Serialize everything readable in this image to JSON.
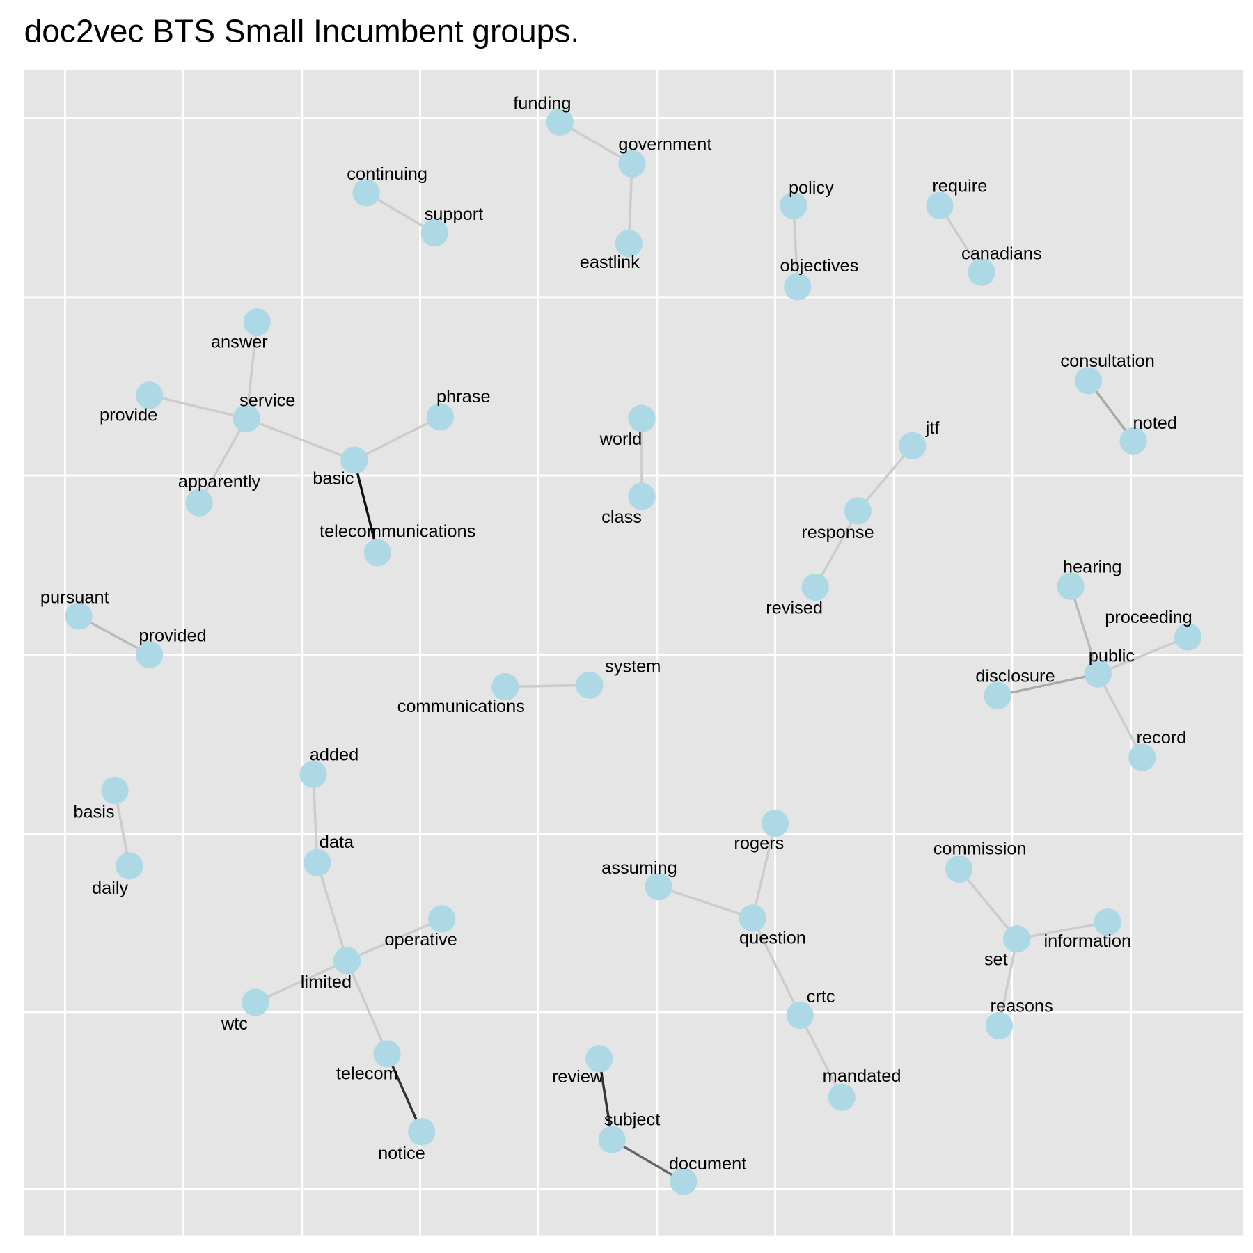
{
  "title": "doc2vec BTS Small Incumbent groups.",
  "node_color": "#add8e6",
  "nodes": [
    {
      "label": "funding"
    },
    {
      "label": "government"
    },
    {
      "label": "eastlink"
    },
    {
      "label": "continuing"
    },
    {
      "label": "support"
    },
    {
      "label": "policy"
    },
    {
      "label": "objectives"
    },
    {
      "label": "require"
    },
    {
      "label": "canadians"
    },
    {
      "label": "answer"
    },
    {
      "label": "service"
    },
    {
      "label": "provide"
    },
    {
      "label": "apparently"
    },
    {
      "label": "basic"
    },
    {
      "label": "phrase"
    },
    {
      "label": "telecommunications"
    },
    {
      "label": "world"
    },
    {
      "label": "class"
    },
    {
      "label": "jtf"
    },
    {
      "label": "response"
    },
    {
      "label": "revised"
    },
    {
      "label": "consultation"
    },
    {
      "label": "noted"
    },
    {
      "label": "pursuant"
    },
    {
      "label": "provided"
    },
    {
      "label": "hearing"
    },
    {
      "label": "proceeding"
    },
    {
      "label": "public"
    },
    {
      "label": "disclosure"
    },
    {
      "label": "record"
    },
    {
      "label": "communications"
    },
    {
      "label": "system"
    },
    {
      "label": "added"
    },
    {
      "label": "basis"
    },
    {
      "label": "daily"
    },
    {
      "label": "data"
    },
    {
      "label": "operative"
    },
    {
      "label": "limited"
    },
    {
      "label": "wtc"
    },
    {
      "label": "telecom"
    },
    {
      "label": "notice"
    },
    {
      "label": "rogers"
    },
    {
      "label": "assuming"
    },
    {
      "label": "question"
    },
    {
      "label": "crtc"
    },
    {
      "label": "mandated"
    },
    {
      "label": "commission"
    },
    {
      "label": "set"
    },
    {
      "label": "information"
    },
    {
      "label": "reasons"
    },
    {
      "label": "review"
    },
    {
      "label": "subject"
    },
    {
      "label": "document"
    }
  ],
  "edges": [
    {
      "source": 0,
      "target": 1,
      "color": "#cccccc"
    },
    {
      "source": 1,
      "target": 2,
      "color": "#cccccc"
    },
    {
      "source": 3,
      "target": 4,
      "color": "#cccccc"
    },
    {
      "source": 5,
      "target": 6,
      "color": "#cccccc"
    },
    {
      "source": 7,
      "target": 8,
      "color": "#cccccc"
    },
    {
      "source": 9,
      "target": 10,
      "color": "#cccccc"
    },
    {
      "source": 10,
      "target": 11,
      "color": "#cccccc"
    },
    {
      "source": 10,
      "target": 12,
      "color": "#cccccc"
    },
    {
      "source": 10,
      "target": 13,
      "color": "#cccccc"
    },
    {
      "source": 13,
      "target": 14,
      "color": "#cccccc"
    },
    {
      "source": 13,
      "target": 15,
      "color": "#111111"
    },
    {
      "source": 16,
      "target": 17,
      "color": "#cccccc"
    },
    {
      "source": 18,
      "target": 19,
      "color": "#cccccc"
    },
    {
      "source": 19,
      "target": 20,
      "color": "#cccccc"
    },
    {
      "source": 21,
      "target": 22,
      "color": "#aaaaaa"
    },
    {
      "source": 23,
      "target": 24,
      "color": "#bbbbbb"
    },
    {
      "source": 25,
      "target": 27,
      "color": "#bbbbbb"
    },
    {
      "source": 26,
      "target": 27,
      "color": "#cccccc"
    },
    {
      "source": 27,
      "target": 28,
      "color": "#aaaaaa"
    },
    {
      "source": 27,
      "target": 29,
      "color": "#cccccc"
    },
    {
      "source": 30,
      "target": 31,
      "color": "#cccccc"
    },
    {
      "source": 32,
      "target": 35,
      "color": "#cccccc"
    },
    {
      "source": 33,
      "target": 34,
      "color": "#cccccc"
    },
    {
      "source": 35,
      "target": 37,
      "color": "#cccccc"
    },
    {
      "source": 37,
      "target": 36,
      "color": "#cccccc"
    },
    {
      "source": 37,
      "target": 38,
      "color": "#cccccc"
    },
    {
      "source": 37,
      "target": 39,
      "color": "#cccccc"
    },
    {
      "source": 39,
      "target": 40,
      "color": "#333333"
    },
    {
      "source": 41,
      "target": 43,
      "color": "#cccccc"
    },
    {
      "source": 42,
      "target": 43,
      "color": "#cccccc"
    },
    {
      "source": 43,
      "target": 44,
      "color": "#cccccc"
    },
    {
      "source": 44,
      "target": 45,
      "color": "#cccccc"
    },
    {
      "source": 46,
      "target": 47,
      "color": "#cccccc"
    },
    {
      "source": 47,
      "target": 48,
      "color": "#cccccc"
    },
    {
      "source": 47,
      "target": 49,
      "color": "#cccccc"
    },
    {
      "source": 50,
      "target": 51,
      "color": "#333333"
    },
    {
      "source": 51,
      "target": 52,
      "color": "#666666"
    }
  ]
}
